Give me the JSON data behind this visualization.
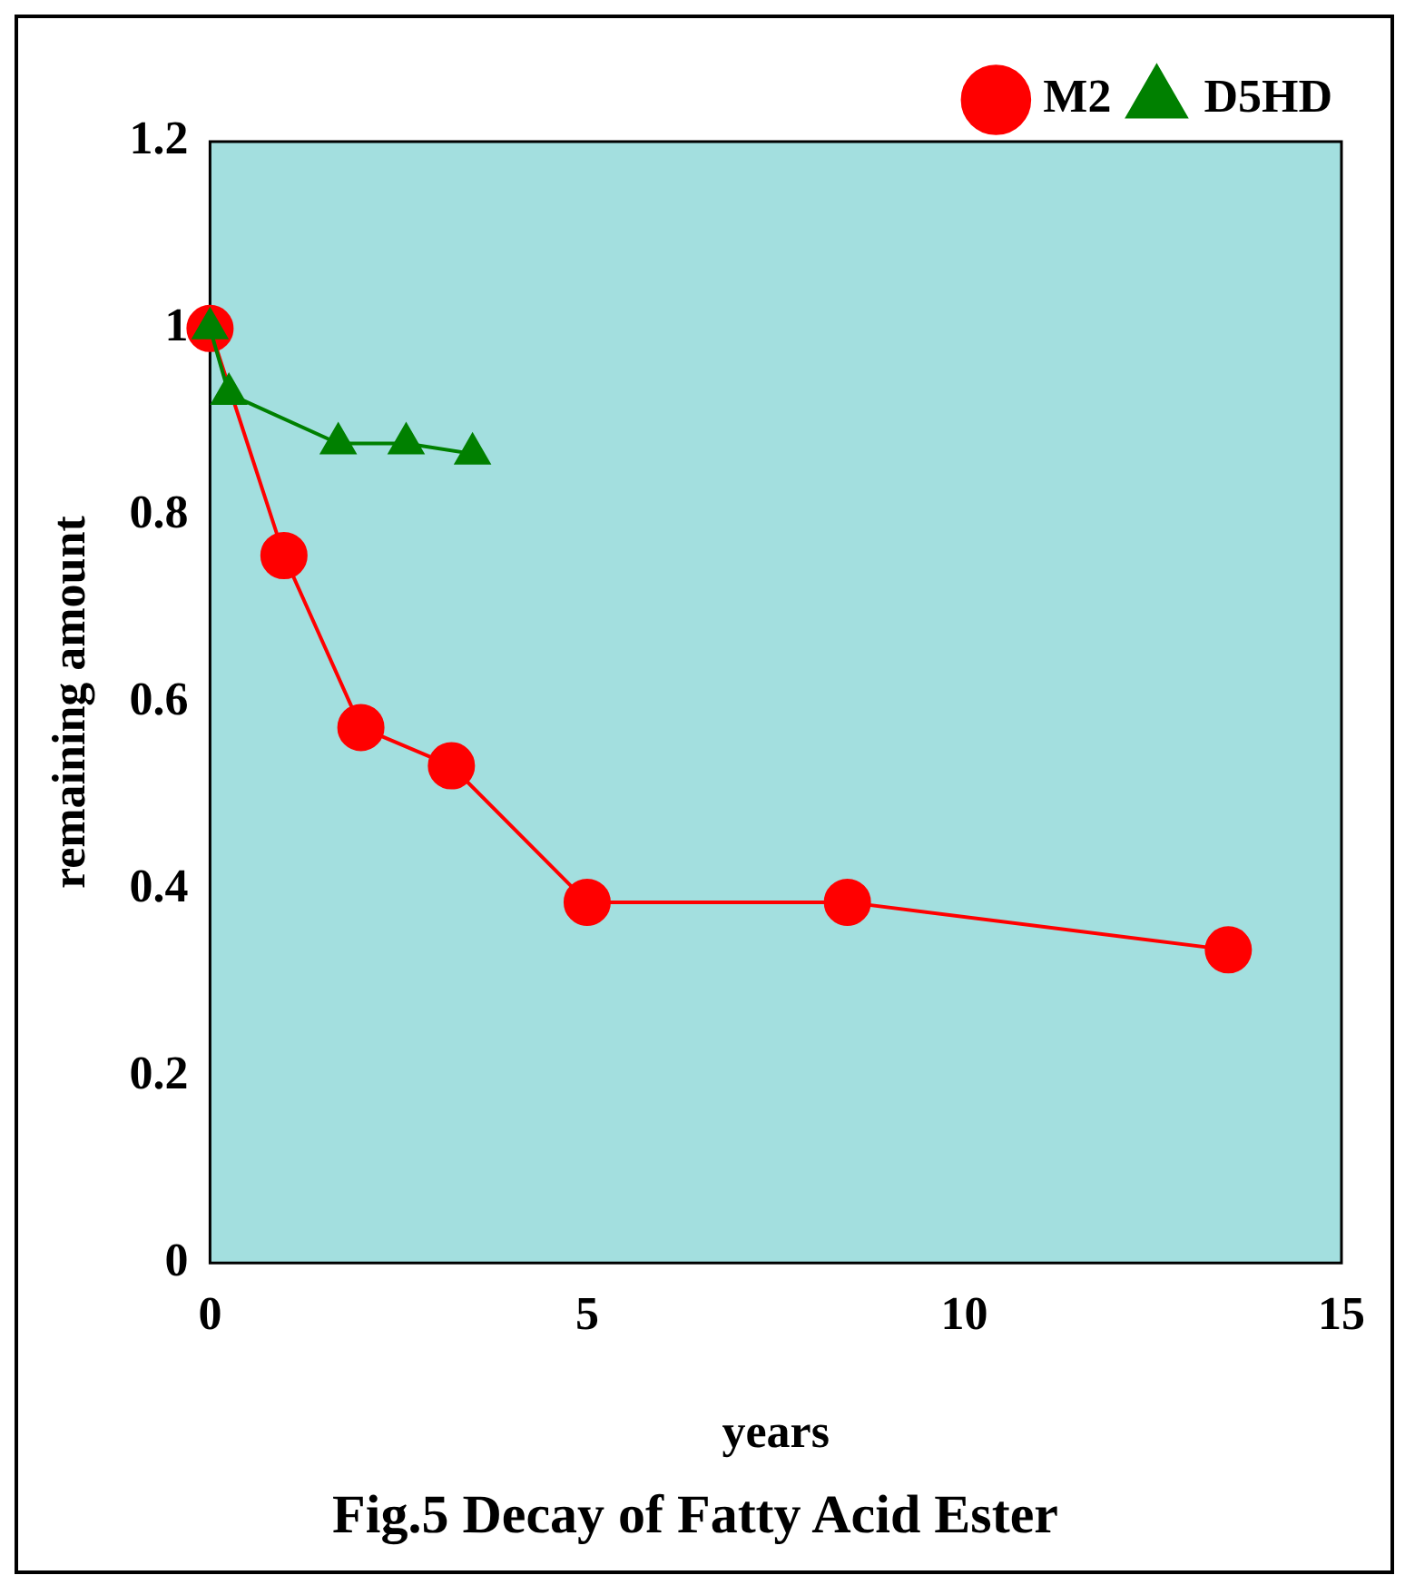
{
  "chart_data": {
    "type": "line",
    "title": "Fig.5 Decay of Fatty Acid Ester",
    "xlabel": "years",
    "ylabel": "remaining amount",
    "series": [
      {
        "name": "M2",
        "color": "#ff0000",
        "marker": "circle",
        "x": [
          0,
          0.98,
          2.0,
          3.2,
          5.0,
          8.45,
          13.5
        ],
        "values": [
          1,
          0.757,
          0.573,
          0.532,
          0.386,
          0.386,
          0.335
        ]
      },
      {
        "name": "D5HD",
        "color": "#008000",
        "marker": "triangle",
        "x": [
          0,
          0.25,
          1.7,
          2.6,
          3.48
        ],
        "values": [
          1,
          0.93,
          0.877,
          0.877,
          0.866
        ]
      }
    ],
    "xlim": [
      0,
      15
    ],
    "xticks": [
      0,
      5,
      10,
      15
    ],
    "ylim": [
      0,
      1.2
    ],
    "yticks": [
      0,
      0.2,
      0.4,
      0.6,
      0.8,
      1,
      1.2
    ],
    "grid": false,
    "legend": "top right",
    "line_style": "solid"
  }
}
